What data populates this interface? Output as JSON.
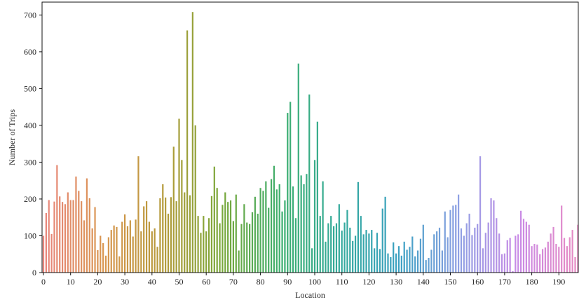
{
  "chart_data": {
    "type": "bar",
    "xlabel": "Location",
    "ylabel": "Number of Trips",
    "x_start": 0,
    "xticks": [
      0,
      10,
      20,
      30,
      40,
      50,
      60,
      70,
      80,
      90,
      100,
      110,
      120,
      130,
      140,
      150,
      160,
      170,
      180,
      190
    ],
    "yticks": [
      0,
      100,
      200,
      300,
      400,
      500,
      600,
      700
    ],
    "ylim": [
      0,
      735
    ],
    "grid": false,
    "colors": {
      "frame": "#111111",
      "palette_stops": [
        "#e8857c",
        "#d99650",
        "#b59a3a",
        "#7aa83a",
        "#3cae6e",
        "#34aa9c",
        "#3aa0c2",
        "#8fa0e4",
        "#c98ae6",
        "#e78ac2"
      ]
    },
    "values": [
      100,
      162,
      197,
      105,
      193,
      292,
      207,
      192,
      186,
      218,
      197,
      197,
      261,
      222,
      194,
      142,
      256,
      202,
      120,
      178,
      61,
      100,
      80,
      46,
      96,
      116,
      128,
      124,
      44,
      138,
      158,
      126,
      142,
      98,
      144,
      316,
      112,
      180,
      194,
      138,
      112,
      120,
      70,
      202,
      240,
      204,
      160,
      205,
      342,
      194,
      418,
      306,
      218,
      658,
      210,
      708,
      400,
      154,
      108,
      154,
      112,
      148,
      208,
      288,
      230,
      134,
      184,
      218,
      192,
      196,
      140,
      212,
      60,
      132,
      186,
      136,
      132,
      164,
      206,
      160,
      230,
      222,
      248,
      176,
      254,
      290,
      226,
      240,
      166,
      196,
      434,
      464,
      234,
      148,
      568,
      264,
      240,
      268,
      484,
      66,
      306,
      410,
      154,
      248,
      84,
      134,
      154,
      126,
      134,
      186,
      114,
      136,
      170,
      122,
      86,
      100,
      246,
      154,
      104,
      116,
      106,
      116,
      66,
      108,
      64,
      174,
      206,
      52,
      42,
      82,
      52,
      72,
      46,
      84,
      62,
      70,
      98,
      44,
      60,
      92,
      130,
      34,
      40,
      62,
      104,
      112,
      122,
      60,
      166,
      96,
      170,
      182,
      184,
      212,
      120,
      100,
      134,
      160,
      102,
      122,
      132,
      316,
      66,
      108,
      136,
      202,
      196,
      148,
      106,
      50,
      52,
      88,
      94,
      4,
      100,
      104,
      168,
      146,
      138,
      130,
      72,
      78,
      76,
      50,
      64,
      68,
      84,
      106,
      124,
      78,
      70,
      182,
      94,
      72,
      96,
      116,
      42,
      130
    ]
  }
}
